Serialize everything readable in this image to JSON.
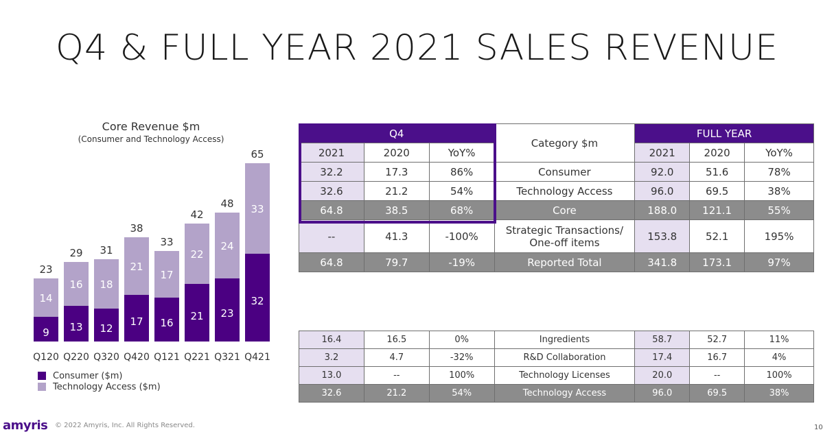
{
  "page": {
    "title": "Q4 & FULL YEAR 2021 SALES REVENUE",
    "footer_logo": "amyris",
    "footer_copyright": "© 2022 Amyris, Inc. All Rights Reserved.",
    "page_number": "10"
  },
  "colors": {
    "consumer": "#4b0082",
    "technology_access": "#b3a3c9",
    "header_purple": "#4b0f8a",
    "lavender": "#e6dff0",
    "gray_row": "#8c8c8c"
  },
  "chart_data": {
    "type": "bar",
    "stacked": true,
    "title": "Core Revenue $m",
    "subtitle": "(Consumer and Technology Access)",
    "categories": [
      "Q120",
      "Q220",
      "Q320",
      "Q420",
      "Q121",
      "Q221",
      "Q321",
      "Q421"
    ],
    "series": [
      {
        "name": "Consumer ($m)",
        "values": [
          9,
          13,
          12,
          17,
          16,
          21,
          23,
          32
        ]
      },
      {
        "name": "Technology Access ($m)",
        "values": [
          14,
          16,
          18,
          21,
          17,
          22,
          24,
          33
        ]
      }
    ],
    "totals": [
      23,
      29,
      31,
      38,
      33,
      42,
      48,
      65
    ],
    "ylim": [
      0,
      70
    ],
    "legend_position": "bottom-left",
    "grid": false
  },
  "table_main": {
    "group_q4": "Q4",
    "group_category": "Category $m",
    "group_full_year": "FULL YEAR",
    "subheaders_q4": [
      "2021",
      "2020",
      "YoY%"
    ],
    "subheaders_fy": [
      "2021",
      "2020",
      "YoY%"
    ],
    "rows": [
      {
        "q4_2021": "32.2",
        "q4_2020": "17.3",
        "q4_yoy": "86%",
        "category": "Consumer",
        "fy_2021": "92.0",
        "fy_2020": "51.6",
        "fy_yoy": "78%"
      },
      {
        "q4_2021": "32.6",
        "q4_2020": "21.2",
        "q4_yoy": "54%",
        "category": "Technology Access",
        "fy_2021": "96.0",
        "fy_2020": "69.5",
        "fy_yoy": "38%"
      },
      {
        "q4_2021": "64.8",
        "q4_2020": "38.5",
        "q4_yoy": "68%",
        "category": "Core",
        "fy_2021": "188.0",
        "fy_2020": "121.1",
        "fy_yoy": "55%"
      },
      {
        "q4_2021": "--",
        "q4_2020": "41.3",
        "q4_yoy": "-100%",
        "category": "Strategic Transactions/\nOne-off items",
        "fy_2021": "153.8",
        "fy_2020": "52.1",
        "fy_yoy": "195%"
      },
      {
        "q4_2021": "64.8",
        "q4_2020": "79.7",
        "q4_yoy": "-19%",
        "category": "Reported Total",
        "fy_2021": "341.8",
        "fy_2020": "173.1",
        "fy_yoy": "97%"
      }
    ]
  },
  "table_tech": {
    "rows": [
      {
        "q4_2021": "16.4",
        "q4_2020": "16.5",
        "q4_yoy": "0%",
        "category": "Ingredients",
        "fy_2021": "58.7",
        "fy_2020": "52.7",
        "fy_yoy": "11%"
      },
      {
        "q4_2021": "3.2",
        "q4_2020": "4.7",
        "q4_yoy": "-32%",
        "category": "R&D Collaboration",
        "fy_2021": "17.4",
        "fy_2020": "16.7",
        "fy_yoy": "4%"
      },
      {
        "q4_2021": "13.0",
        "q4_2020": "--",
        "q4_yoy": "100%",
        "category": "Technology Licenses",
        "fy_2021": "20.0",
        "fy_2020": "--",
        "fy_yoy": "100%"
      },
      {
        "q4_2021": "32.6",
        "q4_2020": "21.2",
        "q4_yoy": "54%",
        "category": "Technology Access",
        "fy_2021": "96.0",
        "fy_2020": "69.5",
        "fy_yoy": "38%"
      }
    ]
  }
}
